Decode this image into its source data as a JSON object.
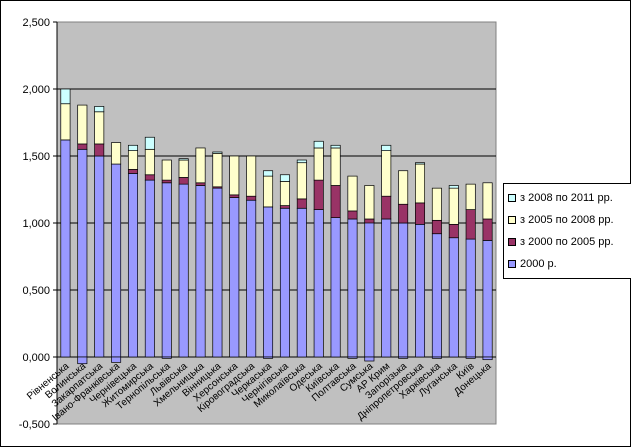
{
  "chart_data": {
    "type": "bar",
    "stacked": true,
    "title": "",
    "xlabel": "",
    "ylabel": "",
    "ylim": [
      -0.5,
      2.5
    ],
    "y_ticks": [
      "-0,500",
      "0,000",
      "0,500",
      "1,000",
      "1,500",
      "2,000",
      "2,500"
    ],
    "y_tick_values": [
      -0.5,
      0,
      0.5,
      1,
      1.5,
      2,
      2.5
    ],
    "grid": true,
    "legend_position": "right",
    "categories": [
      "Рівненська",
      "Волинська",
      "Закарпатська",
      "Івано-Франківська",
      "Чернівецька",
      "Житомирська",
      "Тернопільська",
      "Львівська",
      "Хмельницька",
      "Вінницька",
      "Херсонська",
      "Кіровоградська",
      "Черкаська",
      "Чернігівська",
      "Миколаївська",
      "Одеська",
      "Київська",
      "Полтавська",
      "Сумська",
      "АР Крим",
      "Запорізька",
      "Дніпропетровська",
      "Харківська",
      "Луганська",
      "Київ",
      "Донецька"
    ],
    "series": [
      {
        "name": "2000 р.",
        "color": "#9999ff",
        "values": [
          1.62,
          1.55,
          1.5,
          1.44,
          1.37,
          1.32,
          1.3,
          1.29,
          1.28,
          1.26,
          1.19,
          1.17,
          1.12,
          1.11,
          1.11,
          1.1,
          1.04,
          1.03,
          1.03,
          1.03,
          1.0,
          0.99,
          0.92,
          0.89,
          0.88,
          0.87
        ]
      },
      {
        "name": "з 2000 по 2005 рр.",
        "color": "#993366",
        "values": [
          0.0,
          0.04,
          0.09,
          0.0,
          0.03,
          0.04,
          0.02,
          0.05,
          0.02,
          0.01,
          0.02,
          0.03,
          0.0,
          0.02,
          0.07,
          0.22,
          0.24,
          0.06,
          -0.03,
          0.17,
          0.14,
          0.16,
          0.1,
          0.1,
          0.22,
          0.16
        ]
      },
      {
        "name": "з 2005 по 2008 рр.",
        "color": "#ffffcc",
        "values": [
          0.27,
          0.29,
          0.24,
          0.16,
          0.14,
          0.19,
          0.15,
          0.13,
          0.26,
          0.25,
          0.29,
          0.3,
          0.23,
          0.18,
          0.27,
          0.24,
          0.28,
          0.26,
          0.25,
          0.34,
          0.25,
          0.29,
          0.24,
          0.27,
          0.19,
          0.27
        ]
      },
      {
        "name": "з 2008 по 2011 рр.",
        "color": "#ccffff",
        "values": [
          0.11,
          0.0,
          0.04,
          0.0,
          0.04,
          0.09,
          0.0,
          0.01,
          0.0,
          0.01,
          0.0,
          0.0,
          0.04,
          0.05,
          0.02,
          0.05,
          0.02,
          0.0,
          0.0,
          0.04,
          0.0,
          0.01,
          0.0,
          0.02,
          0.0,
          0.0
        ]
      }
    ],
    "negative_2000_series_values": [
      0.0,
      -0.05,
      0.0,
      -0.04,
      0.0,
      0.0,
      -0.01,
      0.0,
      0.0,
      0.0,
      0.0,
      0.0,
      -0.01,
      0.0,
      0.0,
      0.0,
      0.0,
      -0.01,
      -0.03,
      0.0,
      -0.01,
      0.0,
      -0.01,
      0.0,
      -0.01,
      -0.02
    ]
  }
}
